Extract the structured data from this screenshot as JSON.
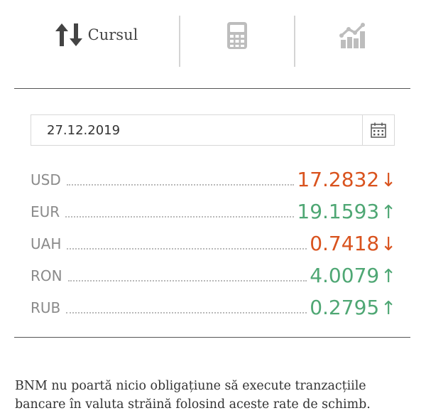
{
  "tabs": {
    "rates": {
      "label": "Cursul",
      "icon": "up-down-arrows-icon"
    },
    "calculator": {
      "icon": "calculator-icon"
    },
    "chart": {
      "icon": "chart-icon"
    }
  },
  "date": {
    "value": "27.12.2019",
    "icon": "calendar-icon"
  },
  "rates": [
    {
      "code": "USD",
      "value": "17.2832",
      "arrow": "↓",
      "trend": "down"
    },
    {
      "code": "EUR",
      "value": "19.1593",
      "arrow": "↑",
      "trend": "up"
    },
    {
      "code": "UAH",
      "value": "0.7418",
      "arrow": "↓",
      "trend": "down"
    },
    {
      "code": "RON",
      "value": "4.0079",
      "arrow": "↑",
      "trend": "up"
    },
    {
      "code": "RUB",
      "value": "0.2795",
      "arrow": "↑",
      "trend": "up"
    }
  ],
  "colors": {
    "down": "#d9531e",
    "up": "#4fa774",
    "icon_dark": "#444444",
    "icon_light": "#bdbdbd"
  },
  "disclaimer": {
    "line1": "BNM nu poartă nicio obligațiune să execute tranzacțiile",
    "line2": "bancare în valuta străină folosind aceste rate de schimb."
  }
}
